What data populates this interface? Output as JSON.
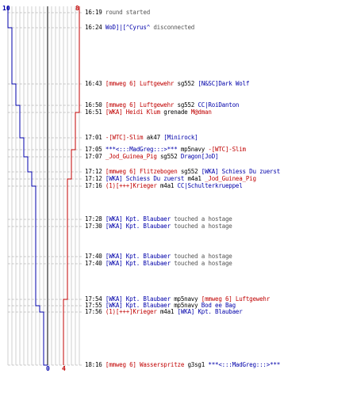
{
  "scores": {
    "blue_start": "10",
    "red_start": "8",
    "blue_end": "0",
    "red_end": "4"
  },
  "colors": {
    "blue": "#0000aa",
    "red": "#c00000",
    "text": "#000000",
    "gray": "#555555",
    "grid": "#b0b0b0",
    "axis": "#000000"
  },
  "events": [
    {
      "time": "16:19",
      "parts": [
        {
          "text": "round started",
          "c": "gray"
        }
      ]
    },
    {
      "time": "16:24",
      "parts": [
        {
          "text": "WoD]|[^Cyrus^",
          "c": "blue"
        },
        {
          "text": " disconnected",
          "c": "gray"
        }
      ]
    },
    {
      "time": "16:43",
      "parts": [
        {
          "text": "[mmweg 6] Luftgewehr",
          "c": "red"
        },
        {
          "text": " sg552 ",
          "c": "blk"
        },
        {
          "text": "[N&SC]Dark Wolf",
          "c": "blue"
        }
      ]
    },
    {
      "time": "16:50",
      "parts": [
        {
          "text": "[mmweg 6] Luftgewehr",
          "c": "red"
        },
        {
          "text": " sg552 ",
          "c": "blk"
        },
        {
          "text": "CC|RoiDanton",
          "c": "blue"
        }
      ]
    },
    {
      "time": "16:51",
      "parts": [
        {
          "text": "[WKA] Heidi Klum",
          "c": "red"
        },
        {
          "text": " grenade ",
          "c": "blk"
        },
        {
          "text": "M@dman",
          "c": "red"
        }
      ]
    },
    {
      "time": "17:01",
      "parts": [
        {
          "text": "-[WTC]-Slim",
          "c": "red"
        },
        {
          "text": " ak47 ",
          "c": "blk"
        },
        {
          "text": "[Minirock]",
          "c": "blue"
        }
      ]
    },
    {
      "time": "17:05",
      "parts": [
        {
          "text": "***<:::MadGreg:::>***",
          "c": "blue"
        },
        {
          "text": " mp5navy ",
          "c": "blk"
        },
        {
          "text": "-[WTC]-Slim",
          "c": "red"
        }
      ]
    },
    {
      "time": "17:07",
      "parts": [
        {
          "text": "_Jod_Guinea_Pig",
          "c": "red"
        },
        {
          "text": " sg552 ",
          "c": "blk"
        },
        {
          "text": "Dragon[JoD]",
          "c": "blue"
        }
      ]
    },
    {
      "time": "17:12",
      "parts": [
        {
          "text": "[mmweg 6] Flitzebogen",
          "c": "red"
        },
        {
          "text": " sg552 ",
          "c": "blk"
        },
        {
          "text": "[WKA] Schiess Du zuerst",
          "c": "blue"
        }
      ]
    },
    {
      "time": "17:12",
      "parts": [
        {
          "text": "[WKA] Schiess Du zuerst",
          "c": "blue"
        },
        {
          "text": " m4a1 ",
          "c": "blk"
        },
        {
          "text": "_Jod_Guinea_Pig",
          "c": "red"
        }
      ]
    },
    {
      "time": "17:16",
      "parts": [
        {
          "text": "(1)[+++]Krieger",
          "c": "red"
        },
        {
          "text": " m4a1 ",
          "c": "blk"
        },
        {
          "text": "CC|Schulterkrueppel",
          "c": "blue"
        }
      ]
    },
    {
      "time": "17:28",
      "parts": [
        {
          "text": "[WKA] Kpt. Blaubaer",
          "c": "blue"
        },
        {
          "text": " touched a hostage",
          "c": "gray"
        }
      ]
    },
    {
      "time": "17:30",
      "parts": [
        {
          "text": "[WKA] Kpt. Blaubaer",
          "c": "blue"
        },
        {
          "text": " touched a hostage",
          "c": "gray"
        }
      ]
    },
    {
      "time": "17:40",
      "parts": [
        {
          "text": "[WKA] Kpt. Blaubaer",
          "c": "blue"
        },
        {
          "text": " touched a hostage",
          "c": "gray"
        }
      ]
    },
    {
      "time": "17:40",
      "parts": [
        {
          "text": "[WKA] Kpt. Blaubaer",
          "c": "blue"
        },
        {
          "text": " touched a hostage",
          "c": "gray"
        }
      ]
    },
    {
      "time": "17:54",
      "parts": [
        {
          "text": "[WKA] Kpt. Blaubaer",
          "c": "blue"
        },
        {
          "text": " mp5navy ",
          "c": "blk"
        },
        {
          "text": "[mmweg 6] Luftgewehr",
          "c": "red"
        }
      ]
    },
    {
      "time": "17:55",
      "parts": [
        {
          "text": "[WKA] Kpt. Blaubaer",
          "c": "blue"
        },
        {
          "text": " mp5navy ",
          "c": "blk"
        },
        {
          "text": "Bod ee Bag",
          "c": "blue"
        }
      ]
    },
    {
      "time": "17:56",
      "parts": [
        {
          "text": "(1)[+++]Krieger",
          "c": "red"
        },
        {
          "text": " m4a1 ",
          "c": "blk"
        },
        {
          "text": "[WKA] Kpt. Blaubaer",
          "c": "blue"
        }
      ]
    },
    {
      "time": "18:16",
      "parts": [
        {
          "text": "[mmweg 6] Wasserspritze",
          "c": "red"
        },
        {
          "text": " g3sg1 ",
          "c": "blk"
        },
        {
          "text": "***<:::MadGreg:::>***",
          "c": "blue"
        }
      ]
    }
  ],
  "chart_data": {
    "type": "line",
    "x": [
      "16:19",
      "16:24",
      "16:43",
      "16:50",
      "16:51",
      "17:01",
      "17:05",
      "17:07",
      "17:12",
      "17:12",
      "17:16",
      "17:28",
      "17:30",
      "17:40",
      "17:40",
      "17:54",
      "17:55",
      "17:56",
      "18:16"
    ],
    "series": [
      {
        "values": [
          10,
          9,
          8,
          7,
          7,
          6,
          6,
          5,
          4,
          4,
          3,
          3,
          3,
          3,
          3,
          3,
          2,
          1,
          0
        ]
      },
      {
        "values": [
          8,
          8,
          8,
          8,
          7,
          7,
          6,
          6,
          6,
          5,
          5,
          5,
          5,
          5,
          5,
          4,
          4,
          4,
          4
        ]
      }
    ],
    "ylim": [
      0,
      10
    ]
  }
}
